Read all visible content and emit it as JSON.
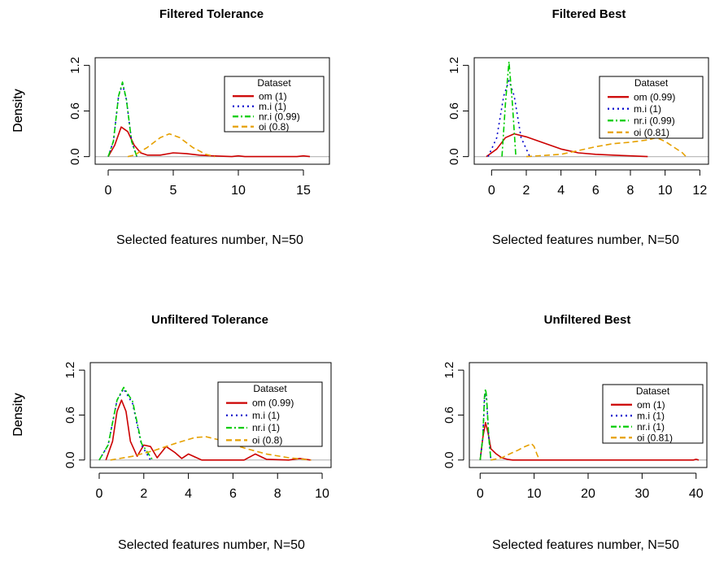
{
  "chart_data": [
    {
      "type": "line",
      "title": "Filtered Tolerance",
      "xlabel": "Selected features number, N=50",
      "ylabel": "Density",
      "xlim": [
        -1,
        17
      ],
      "ylim": [
        -0.1,
        1.3
      ],
      "xticks": [
        "0",
        "5",
        "10",
        "15"
      ],
      "xtick_values": [
        0,
        5,
        10,
        15
      ],
      "yticks": [
        "0.0",
        "0.6",
        "1.2"
      ],
      "ytick_values": [
        0,
        0.6,
        1.2
      ],
      "legend": {
        "title": "Dataset",
        "position": "right"
      },
      "series": [
        {
          "name": "om (1)",
          "color": "#cc0000",
          "dash": "solid",
          "x": [
            0,
            0.5,
            1,
            1.5,
            2,
            2.5,
            3,
            4,
            5,
            6,
            7,
            8,
            9.5,
            10,
            10.5,
            14.5,
            15,
            15.5
          ],
          "y": [
            0,
            0.15,
            0.39,
            0.33,
            0.15,
            0.05,
            0.02,
            0.02,
            0.05,
            0.04,
            0.02,
            0.01,
            0,
            0.01,
            0,
            0,
            0.01,
            0
          ]
        },
        {
          "name": "m.i (1)",
          "color": "#0000cc",
          "dash": "dots",
          "x": [
            0,
            0.4,
            0.8,
            1.1,
            1.4,
            1.8,
            2.2
          ],
          "y": [
            0,
            0.2,
            0.8,
            0.95,
            0.75,
            0.2,
            0
          ]
        },
        {
          "name": "nr.i (0.99)",
          "color": "#00cc00",
          "dash": "dashdot",
          "x": [
            0,
            0.4,
            0.8,
            1.1,
            1.4,
            1.8,
            2.2
          ],
          "y": [
            0,
            0.2,
            0.8,
            0.98,
            0.75,
            0.2,
            0
          ]
        },
        {
          "name": "oi (0.8)",
          "color": "#e6a000",
          "dash": "dash",
          "x": [
            1.5,
            2,
            3,
            4,
            4.7,
            5.5,
            6.5,
            7.5,
            8.2
          ],
          "y": [
            0,
            0.02,
            0.12,
            0.25,
            0.3,
            0.25,
            0.12,
            0.03,
            0
          ]
        }
      ]
    },
    {
      "type": "line",
      "title": "Filtered Best",
      "xlabel": "Selected features number, N=50",
      "ylabel": "Density",
      "xlim": [
        -1,
        12.5
      ],
      "ylim": [
        -0.1,
        1.3
      ],
      "xticks": [
        "0",
        "2",
        "4",
        "6",
        "8",
        "10",
        "12"
      ],
      "xtick_values": [
        0,
        2,
        4,
        6,
        8,
        10,
        12
      ],
      "yticks": [
        "0.0",
        "0.6",
        "1.2"
      ],
      "ytick_values": [
        0,
        0.6,
        1.2
      ],
      "legend": {
        "title": "Dataset",
        "position": "right"
      },
      "series": [
        {
          "name": "om (0.99)",
          "color": "#cc0000",
          "dash": "solid",
          "x": [
            -0.3,
            0.3,
            0.8,
            1.3,
            2,
            3,
            4,
            5,
            6,
            7,
            8,
            9
          ],
          "y": [
            0,
            0.1,
            0.25,
            0.3,
            0.26,
            0.18,
            0.1,
            0.05,
            0.03,
            0.02,
            0.01,
            0
          ]
        },
        {
          "name": "m.i (1)",
          "color": "#0000cc",
          "dash": "dots",
          "x": [
            -0.2,
            0.3,
            0.7,
            1,
            1.3,
            1.7,
            2.2
          ],
          "y": [
            0,
            0.25,
            0.8,
            1.0,
            0.8,
            0.25,
            0
          ]
        },
        {
          "name": "nr.i (0.99)",
          "color": "#00cc00",
          "dash": "dashdot",
          "x": [
            0.6,
            0.8,
            1,
            1.2,
            1.4
          ],
          "y": [
            0,
            0.7,
            1.25,
            0.7,
            0
          ]
        },
        {
          "name": "oi (0.81)",
          "color": "#e6a000",
          "dash": "dash",
          "x": [
            2,
            4,
            5,
            6,
            7,
            8,
            9,
            9.5,
            10,
            11,
            11.2
          ],
          "y": [
            0,
            0.03,
            0.08,
            0.13,
            0.17,
            0.19,
            0.22,
            0.25,
            0.2,
            0.05,
            0
          ]
        }
      ]
    },
    {
      "type": "line",
      "title": "Unfiltered Tolerance",
      "xlabel": "Selected features number, N=50",
      "ylabel": "Density",
      "xlim": [
        -0.4,
        10.4
      ],
      "ylim": [
        -0.1,
        1.3
      ],
      "xticks": [
        "0",
        "2",
        "4",
        "6",
        "8",
        "10"
      ],
      "xtick_values": [
        0,
        2,
        4,
        6,
        8,
        10
      ],
      "yticks": [
        "0.0",
        "0.6",
        "1.2"
      ],
      "ytick_values": [
        0,
        0.6,
        1.2
      ],
      "legend": {
        "title": "Dataset",
        "position": "right"
      },
      "series": [
        {
          "name": "om (0.99)",
          "color": "#cc0000",
          "dash": "solid",
          "x": [
            0.3,
            0.6,
            0.8,
            1,
            1.2,
            1.4,
            1.7,
            2,
            2.3,
            2.6,
            3,
            3.4,
            3.7,
            4,
            4.3,
            4.6,
            6.5,
            7,
            7.5,
            8.5,
            9,
            9.5
          ],
          "y": [
            0,
            0.25,
            0.65,
            0.8,
            0.65,
            0.25,
            0.05,
            0.2,
            0.18,
            0.03,
            0.18,
            0.1,
            0.02,
            0.08,
            0.04,
            0,
            0,
            0.08,
            0.01,
            0,
            0.02,
            0
          ]
        },
        {
          "name": "m.i (1)",
          "color": "#0000cc",
          "dash": "dots",
          "x": [
            0,
            0.4,
            0.8,
            1.1,
            1.5,
            1.9,
            2.3
          ],
          "y": [
            0,
            0.2,
            0.8,
            0.95,
            0.75,
            0.2,
            0
          ]
        },
        {
          "name": "nr.i (1)",
          "color": "#00cc00",
          "dash": "dashdot",
          "x": [
            0,
            0.4,
            0.8,
            1.1,
            1.5,
            1.9,
            2.4
          ],
          "y": [
            0,
            0.2,
            0.8,
            0.97,
            0.78,
            0.22,
            0
          ]
        },
        {
          "name": "oi (0.8)",
          "color": "#e6a000",
          "dash": "dash",
          "x": [
            0.5,
            1.5,
            2.5,
            3.5,
            4.3,
            4.8,
            5.5,
            6.5,
            7.5,
            8.5,
            9.5
          ],
          "y": [
            0,
            0.05,
            0.13,
            0.23,
            0.3,
            0.31,
            0.26,
            0.16,
            0.08,
            0.03,
            0
          ]
        }
      ]
    },
    {
      "type": "line",
      "title": "Unfiltered Best",
      "xlabel": "Selected features number, N=50",
      "ylabel": "Density",
      "xlim": [
        -2,
        42
      ],
      "ylim": [
        -0.1,
        1.3
      ],
      "xticks": [
        "0",
        "10",
        "20",
        "30",
        "40"
      ],
      "xtick_values": [
        0,
        10,
        20,
        30,
        40
      ],
      "yticks": [
        "0.0",
        "0.6",
        "1.2"
      ],
      "ytick_values": [
        0,
        0.6,
        1.2
      ],
      "legend": {
        "title": "Dataset",
        "position": "right"
      },
      "series": [
        {
          "name": "om (1)",
          "color": "#cc0000",
          "dash": "solid",
          "x": [
            0,
            0.5,
            1,
            1.5,
            2,
            3,
            4,
            5,
            6,
            39.5,
            40,
            40.5
          ],
          "y": [
            0,
            0.3,
            0.5,
            0.35,
            0.15,
            0.08,
            0.03,
            0.01,
            0,
            0,
            0.01,
            0
          ]
        },
        {
          "name": "m.i (1)",
          "color": "#0000cc",
          "dash": "dots",
          "x": [
            0,
            0.5,
            0.8,
            1,
            1.2,
            1.6,
            2
          ],
          "y": [
            0,
            0.3,
            0.8,
            0.9,
            0.8,
            0.3,
            0
          ]
        },
        {
          "name": "nr.i (1)",
          "color": "#00cc00",
          "dash": "dashdot",
          "x": [
            0,
            0.5,
            0.8,
            1,
            1.2,
            1.6,
            2
          ],
          "y": [
            0,
            0.3,
            0.85,
            0.95,
            0.85,
            0.3,
            0
          ]
        },
        {
          "name": "oi (0.81)",
          "color": "#e6a000",
          "dash": "dash",
          "x": [
            2,
            4,
            6,
            7,
            8,
            9,
            9.5,
            10,
            10.5,
            11
          ],
          "y": [
            0,
            0.03,
            0.1,
            0.13,
            0.17,
            0.2,
            0.22,
            0.18,
            0.08,
            0
          ]
        }
      ]
    }
  ]
}
